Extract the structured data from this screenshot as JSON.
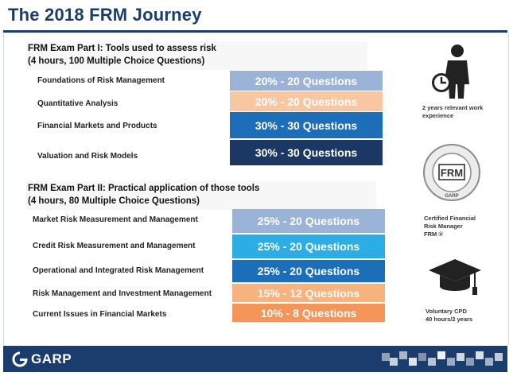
{
  "title": "The 2018 FRM Journey",
  "part1": {
    "heading_line1": "FRM Exam Part I: Tools used to assess risk",
    "heading_line2": "(4 hours, 100 Multiple Choice Questions)",
    "rows": [
      {
        "label": "Foundations of Risk Management",
        "bar": "20% - 20 Questions",
        "color": "#9ab3d7"
      },
      {
        "label": "Quantitative Analysis",
        "bar": "20% - 20 Questions",
        "color": "#f8c7a1"
      },
      {
        "label": "Financial Markets and Products",
        "bar": "30% - 30 Questions",
        "color": "#1c6eb8"
      },
      {
        "label": "Valuation and Risk Models",
        "bar": "30% - 30 Questions",
        "color": "#1b3763"
      }
    ]
  },
  "part2": {
    "heading_line1": "FRM Exam Part II: Practical application of those tools",
    "heading_line2": "(4 hours, 80 Multiple Choice Questions)",
    "rows": [
      {
        "label": "Market Risk Measurement and Management",
        "bar": "25% - 20 Questions",
        "color": "#9ab3d7"
      },
      {
        "label": "Credit Risk Measurement and Management",
        "bar": "25% - 20 Questions",
        "color": "#2aaee4"
      },
      {
        "label": "Operational and Integrated Risk Management",
        "bar": "25% - 20 Questions",
        "color": "#1c6eb8"
      },
      {
        "label": "Risk Management and Investment Management",
        "bar": "15% - 12 Questions",
        "color": "#f7b27d"
      },
      {
        "label": "Current Issues in Financial Markets",
        "bar": "10% - 8 Questions",
        "color": "#f4955a"
      }
    ]
  },
  "side": {
    "work_line1": "2 years relevant work",
    "work_line2": "experience",
    "seal_text": "FRM",
    "seal_ring": "GLOBAL ASSOCIATION OF RISK PROFESSIONALS",
    "seal_bottom": "GARP",
    "cert_line1": "Certified Financial",
    "cert_line2": "Risk Manager",
    "cert_line3": "FRM ®",
    "cpd_line1": "Voluntary CPD",
    "cpd_line2": "40 hours/2 years"
  },
  "footer": {
    "logo": "GARP"
  }
}
